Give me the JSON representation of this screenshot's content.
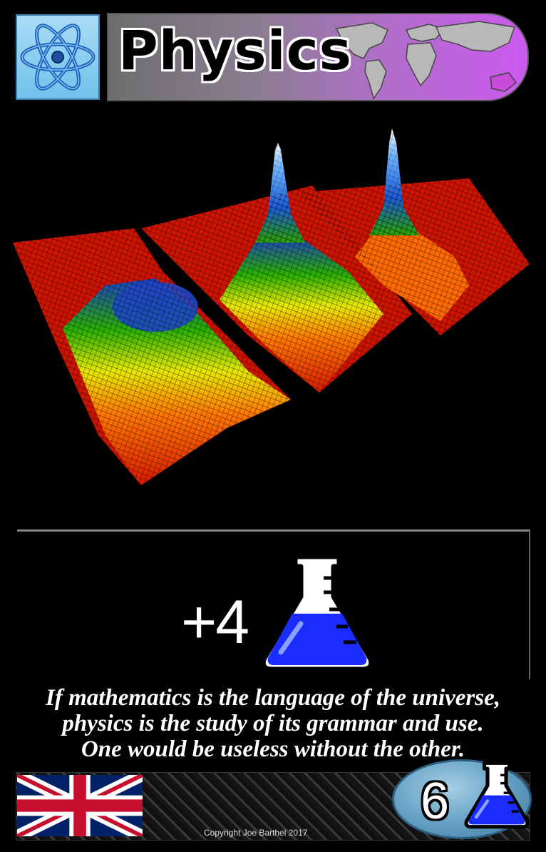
{
  "card": {
    "title": "Physics",
    "category_icon": "atom-icon",
    "background_icon": "world-map-icon",
    "artwork": "bose-einstein-condensate-velocity-distribution",
    "effect": {
      "amount": "+4",
      "resource_icon": "science-flask-icon"
    },
    "quote_lines": [
      "If mathematics is the language of the universe,",
      "physics is the study of its grammar and use.",
      "One would be useless without the other."
    ],
    "flag_icon": "union-jack-flag-icon",
    "copyright": "Copyright Joe Barthel 2017",
    "cost": {
      "value": "6",
      "resource_icon": "science-flask-icon"
    }
  },
  "colors": {
    "title_gradient_start": "#6e6e6e",
    "title_gradient_end": "#cc5af0",
    "atom_tile": "#8fd0f0",
    "flask_liquid": "#1a2cff",
    "cost_oval": "#6ba6c8"
  }
}
